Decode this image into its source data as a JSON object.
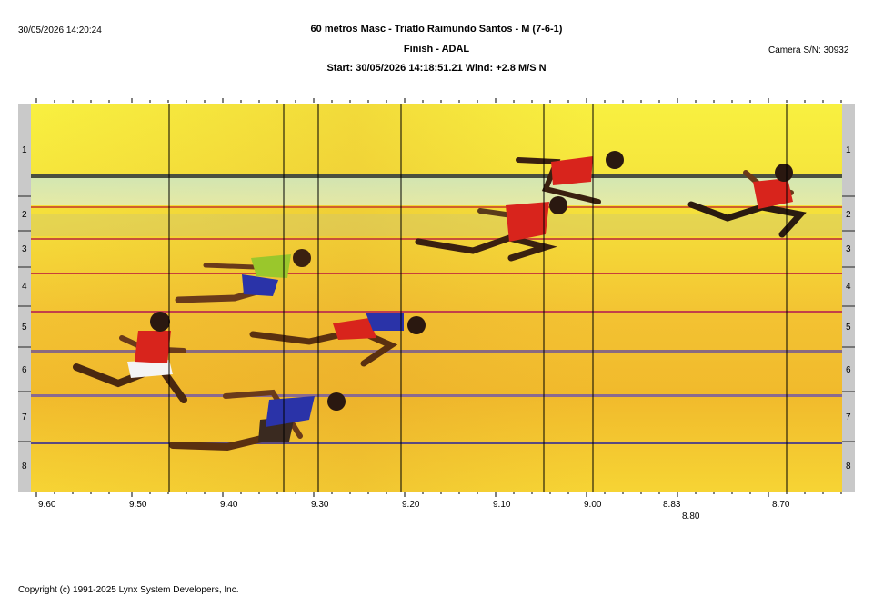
{
  "header": {
    "timestamp": "30/05/2026 14:20:24",
    "title": "60 metros Masc - Triatlo Raimundo Santos - M (7-6-1)",
    "subtitle": "Finish - ADAL",
    "start_line": "Start: 30/05/2026 14:18:51.21    Wind: +2.8 M/S N",
    "camera": "Camera S/N: 30932"
  },
  "lanes": [
    "1",
    "2",
    "3",
    "4",
    "5",
    "6",
    "7",
    "8"
  ],
  "time_axis": {
    "ticks": [
      "9.60",
      "9.50",
      "9.40",
      "9.30",
      "9.20",
      "9.10",
      "9.00",
      "8.83",
      "8.70"
    ],
    "extra_label": "8.80"
  },
  "footer": {
    "copyright": "Copyright (c) 1991-2025 Lynx System Developers, Inc."
  },
  "colors": {
    "background_top": "#f7ee3a",
    "background_bottom": "#f2b62a",
    "side_strip": "#c8c8c8",
    "red_kit": "#d8241c",
    "blue_kit": "#2a33a8",
    "green_kit": "#9ac72c"
  }
}
